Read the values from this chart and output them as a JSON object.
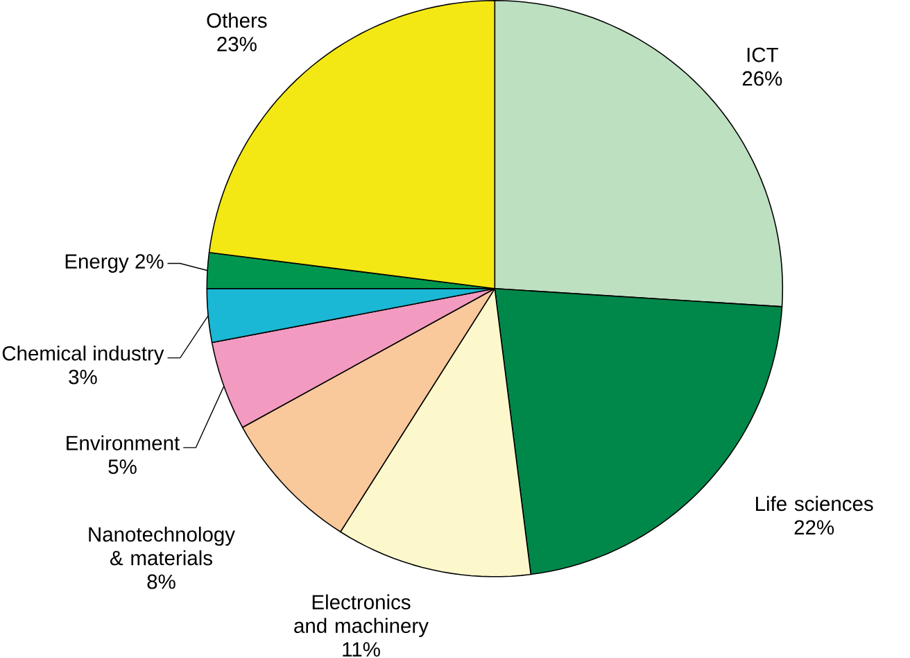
{
  "chart_data": {
    "type": "pie",
    "categories": [
      "ICT",
      "Life sciences",
      "Electronics and machinery",
      "Nanotechnology & materials",
      "Environment",
      "Chemical industry",
      "Energy",
      "Others"
    ],
    "values": [
      26,
      22,
      11,
      8,
      5,
      3,
      2,
      23
    ],
    "value_labels": [
      "26%",
      "22%",
      "11%",
      "8%",
      "5%",
      "3%",
      "2%",
      "23%"
    ],
    "colors": [
      "#bde0c0",
      "#00874a",
      "#fdf8cc",
      "#f9c89b",
      "#f29ac0",
      "#1ab8d4",
      "#00964f",
      "#f3e814"
    ]
  }
}
